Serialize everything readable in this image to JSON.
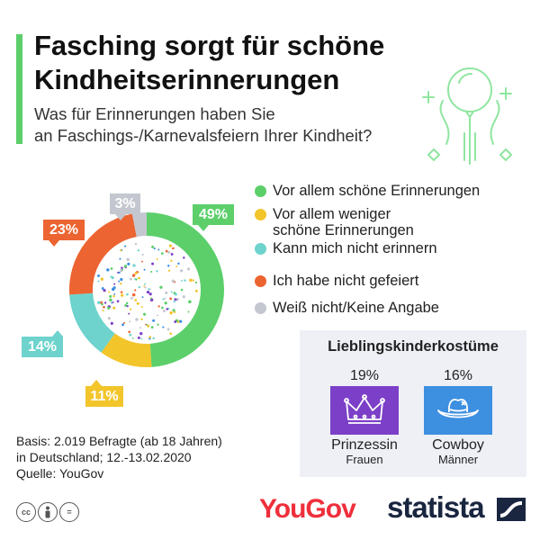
{
  "title_line1": "Fasching sorgt für schöne",
  "title_line2": "Kindheitserinnerungen",
  "subtitle_line1": "Was für Erinnerungen haben Sie",
  "subtitle_line2": "an Faschings-/Karnevalsfeiern Ihrer Kindheit?",
  "colors": {
    "accent": "#5ccf6a",
    "green": "#5ccf6a",
    "yellow": "#f2c52a",
    "teal": "#6dd3cc",
    "orange": "#ec6431",
    "gray": "#c4c7cf",
    "princess_box": "#7c3fc7",
    "cowboy_box": "#3d8fe0"
  },
  "chart_data": {
    "type": "pie",
    "variant": "donut",
    "unit": "%",
    "slices": [
      {
        "label_line1": "Vor allem schöne Erinnerungen",
        "label_line2": "",
        "value": 49,
        "pct_label": "49%",
        "color": "#5ccf6a"
      },
      {
        "label_line1": "Vor allem weniger",
        "label_line2": "schöne Erinnerungen",
        "value": 11,
        "pct_label": "11%",
        "color": "#f2c52a"
      },
      {
        "label_line1": "Kann mich nicht erinnern",
        "label_line2": "",
        "value": 14,
        "pct_label": "14%",
        "color": "#6dd3cc"
      },
      {
        "label_line1": "Ich habe nicht gefeiert",
        "label_line2": "",
        "value": 23,
        "pct_label": "23%",
        "color": "#ec6431"
      },
      {
        "label_line1": "Weiß nicht/Keine Angabe",
        "label_line2": "",
        "value": 3,
        "pct_label": "3%",
        "color": "#c4c7cf"
      }
    ],
    "legend_position": "right"
  },
  "costumes": {
    "title": "Lieblingskinderkostüme",
    "items": [
      {
        "pct": "19%",
        "name": "Prinzessin",
        "group": "Frauen",
        "icon": "crown-icon"
      },
      {
        "pct": "16%",
        "name": "Cowboy",
        "group": "Männer",
        "icon": "cowboy-hat-icon"
      }
    ]
  },
  "notes": {
    "line1": "Basis: 2.019 Befragte (ab 18 Jahren)",
    "line2": "in Deutschland; 12.-13.02.2020",
    "line3": "Quelle: YouGov"
  },
  "license_icons": [
    "cc-icon",
    "person-icon",
    "equals-icon"
  ],
  "brand_yougov": "YouGov",
  "brand_statista": "statista"
}
